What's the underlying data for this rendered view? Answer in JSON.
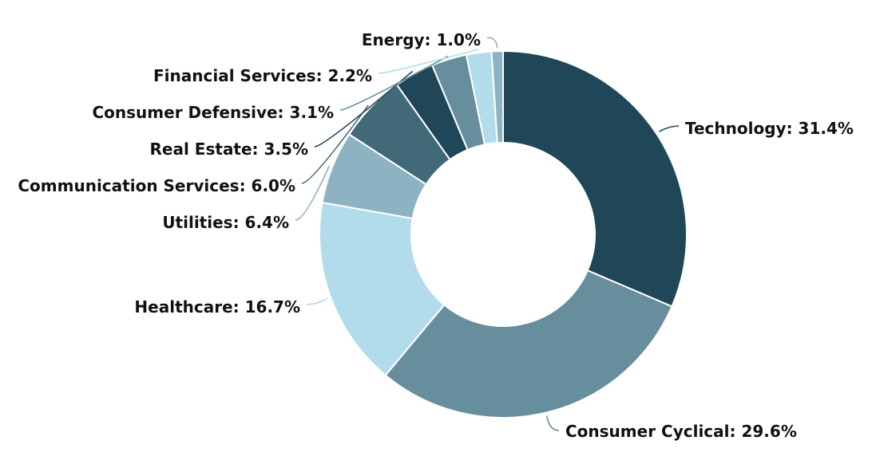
{
  "chart_data": {
    "type": "pie",
    "variant": "donut",
    "categories": [
      "Technology",
      "Consumer Cyclical",
      "Healthcare",
      "Utilities",
      "Communication Services",
      "Real Estate",
      "Consumer Defensive",
      "Financial Services",
      "Energy"
    ],
    "values": [
      31.4,
      29.6,
      16.7,
      6.4,
      6.0,
      3.5,
      3.1,
      2.2,
      1.0
    ],
    "labels": [
      "Technology: 31.4%",
      "Consumer Cyclical: 29.6%",
      "Healthcare: 16.7%",
      "Utilities: 6.4%",
      "Communication Services: 6.0%",
      "Real Estate: 3.5%",
      "Consumer Defensive: 3.1%",
      "Financial Services: 2.2%",
      "Energy: 1.0%"
    ],
    "colors": [
      "#1f4757",
      "#668e9c",
      "#b2dcec",
      "#8db3c3",
      "#426978",
      "#1f4757",
      "#668e9c",
      "#b2dcec",
      "#8db3c3"
    ],
    "title": "",
    "legend": "none"
  }
}
